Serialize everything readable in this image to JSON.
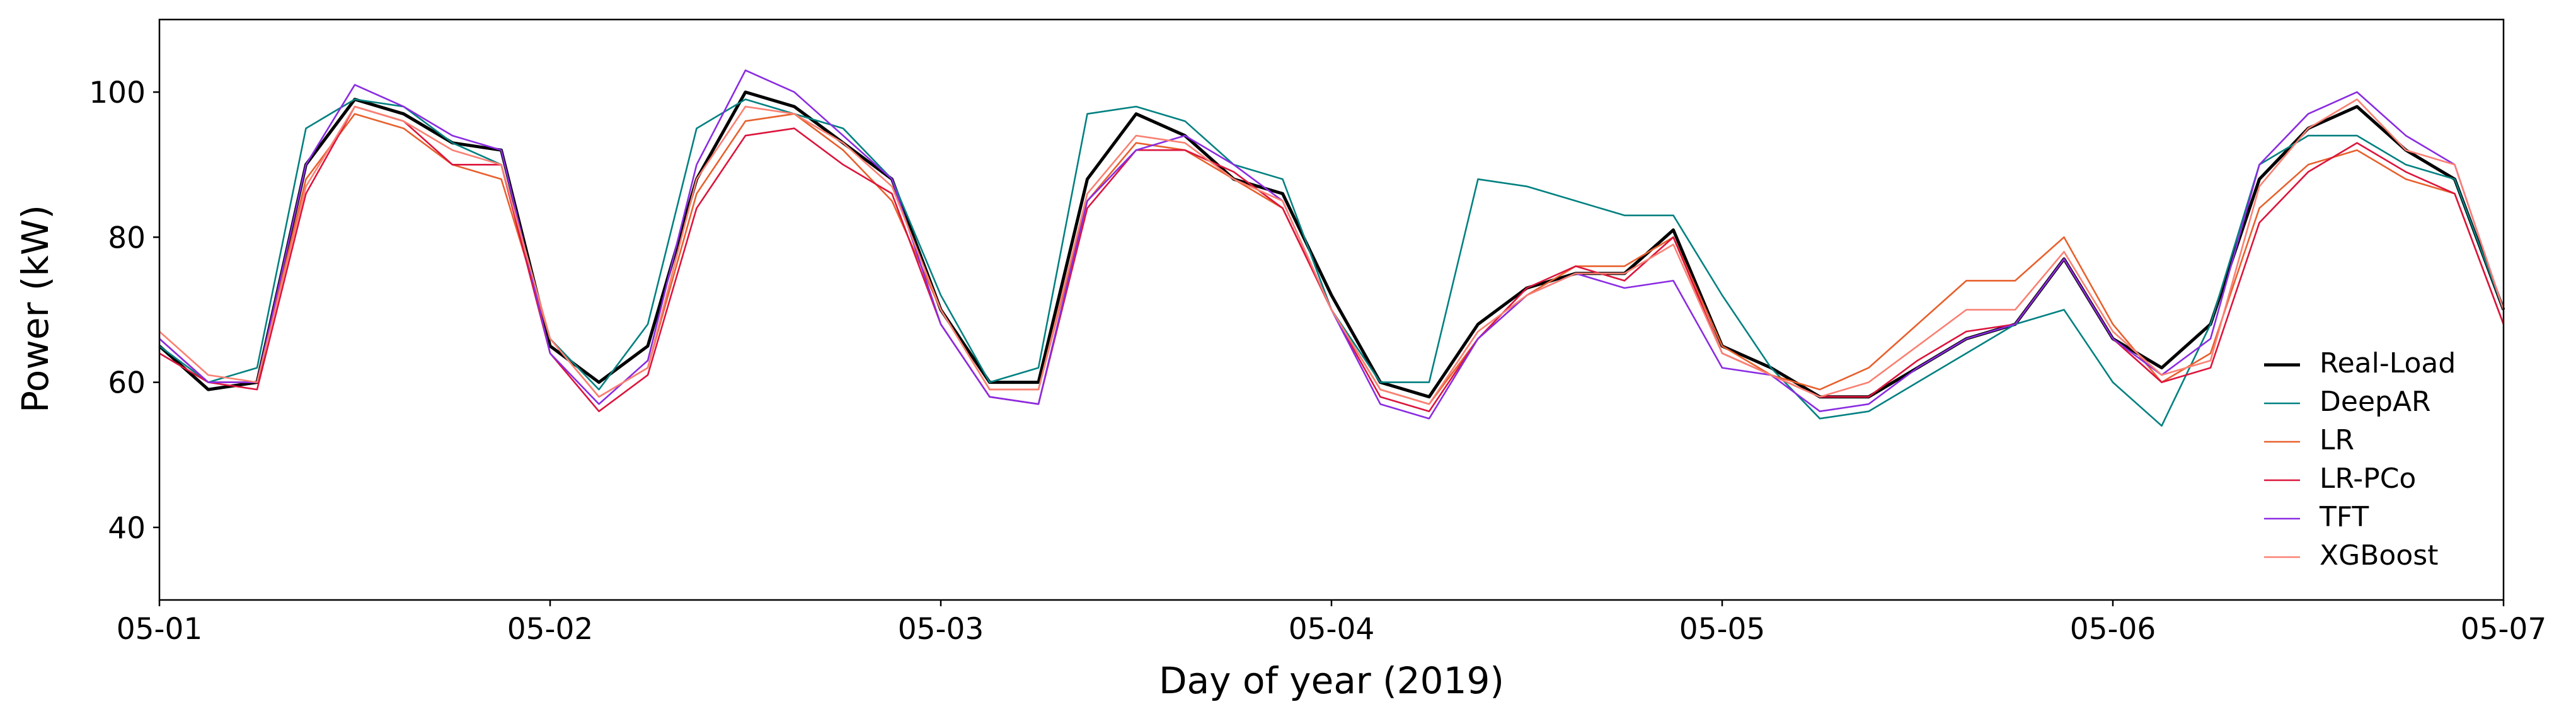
{
  "chart_data": {
    "type": "line",
    "xlabel": "Day of year (2019)",
    "ylabel": "Power (kW)",
    "x": [
      121,
      121.125,
      121.25,
      121.375,
      121.5,
      121.625,
      121.75,
      121.875,
      122,
      122.125,
      122.25,
      122.375,
      122.5,
      122.625,
      122.75,
      122.875,
      123,
      123.125,
      123.25,
      123.375,
      123.5,
      123.625,
      123.75,
      123.875,
      124,
      124.125,
      124.25,
      124.375,
      124.5,
      124.625,
      124.75,
      124.875,
      125,
      125.125,
      125.25,
      125.375,
      125.5,
      125.625,
      125.75,
      125.875,
      126,
      126.125,
      126.25,
      126.375,
      126.5,
      126.625,
      126.75,
      126.875,
      127
    ],
    "series": [
      {
        "name": "Real-Load",
        "color": "#000000",
        "values": [
          65,
          59,
          60,
          90,
          99,
          97,
          93,
          92,
          65,
          60,
          65,
          88,
          100,
          98,
          93,
          88,
          70,
          60,
          60,
          88,
          97,
          94,
          88,
          86,
          72,
          60,
          58,
          68,
          73,
          75,
          75,
          81,
          65,
          62,
          58,
          58,
          62,
          66,
          68,
          77,
          66,
          62,
          68,
          88,
          95,
          98,
          92,
          88,
          70
        ]
      },
      {
        "name": "DeepAR",
        "color": "#008080",
        "values": [
          65,
          60,
          62,
          95,
          99,
          98,
          93,
          90,
          66,
          59,
          68,
          95,
          99,
          97,
          95,
          88,
          72,
          60,
          62,
          97,
          98,
          96,
          90,
          88,
          70,
          60,
          60,
          88,
          87,
          85,
          83,
          83,
          72,
          62,
          55,
          56,
          60,
          64,
          68,
          70,
          60,
          54,
          68,
          90,
          94,
          94,
          90,
          88,
          70
        ]
      },
      {
        "name": "LR",
        "color": "#e8602c",
        "values": [
          66,
          60,
          60,
          88,
          97,
          95,
          90,
          88,
          66,
          58,
          62,
          86,
          96,
          97,
          92,
          85,
          70,
          59,
          59,
          85,
          93,
          92,
          88,
          84,
          70,
          59,
          57,
          66,
          72,
          76,
          76,
          80,
          65,
          61,
          59,
          62,
          68,
          74,
          74,
          80,
          68,
          60,
          64,
          84,
          90,
          92,
          88,
          86,
          68
        ]
      },
      {
        "name": "LR-PCo",
        "color": "#dc143c",
        "values": [
          64,
          60,
          59,
          86,
          98,
          96,
          90,
          90,
          64,
          56,
          61,
          84,
          94,
          95,
          90,
          86,
          68,
          58,
          57,
          84,
          92,
          92,
          89,
          84,
          70,
          58,
          56,
          66,
          73,
          76,
          74,
          80,
          64,
          61,
          58,
          58,
          63,
          67,
          68,
          77,
          66,
          60,
          62,
          82,
          89,
          93,
          89,
          86,
          68
        ]
      },
      {
        "name": "TFT",
        "color": "#8a2be2",
        "values": [
          66,
          60,
          60,
          90,
          101,
          98,
          94,
          92,
          64,
          57,
          63,
          90,
          103,
          100,
          94,
          88,
          68,
          58,
          57,
          85,
          92,
          94,
          90,
          85,
          70,
          57,
          55,
          66,
          72,
          75,
          73,
          74,
          62,
          61,
          56,
          57,
          62,
          66,
          68,
          77,
          66,
          61,
          66,
          90,
          97,
          100,
          94,
          90,
          70
        ]
      },
      {
        "name": "XGBoost",
        "color": "#fa8072",
        "values": [
          67,
          61,
          60,
          87,
          98,
          96,
          92,
          90,
          66,
          58,
          62,
          88,
          98,
          97,
          93,
          87,
          70,
          59,
          59,
          86,
          94,
          93,
          88,
          85,
          70,
          59,
          57,
          67,
          72,
          75,
          75,
          79,
          64,
          61,
          58,
          60,
          65,
          70,
          70,
          78,
          67,
          61,
          63,
          87,
          95,
          99,
          92,
          90,
          70
        ]
      }
    ],
    "xlim": [
      121,
      127
    ],
    "xticks": [
      {
        "value": 121,
        "label": "05-01"
      },
      {
        "value": 122,
        "label": "05-02"
      },
      {
        "value": 123,
        "label": "05-03"
      },
      {
        "value": 124,
        "label": "05-04"
      },
      {
        "value": 125,
        "label": "05-05"
      },
      {
        "value": 126,
        "label": "05-06"
      },
      {
        "value": 127,
        "label": "05-07"
      }
    ],
    "ylim": [
      30,
      110
    ],
    "yticks": [
      40,
      60,
      80,
      100
    ],
    "grid": false,
    "legend": "lower right"
  }
}
